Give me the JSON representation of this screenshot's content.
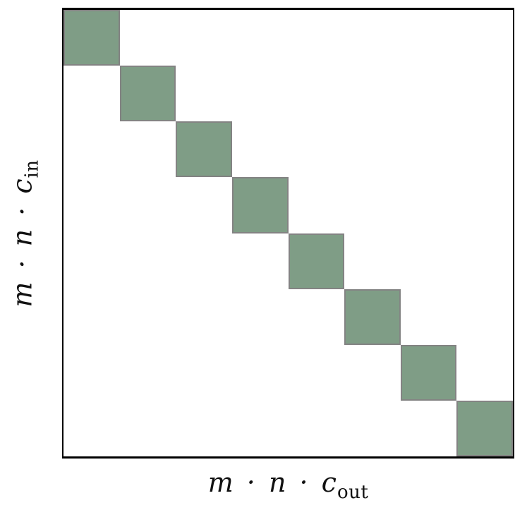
{
  "figure": {
    "type": "block-diagonal-matrix-diagram",
    "diagonal_blocks": 8,
    "xlabel": {
      "main": "m · n · c",
      "sub": "out"
    },
    "ylabel": {
      "main": "m · n · c",
      "sub": "in"
    },
    "colors": {
      "block_fill": "#7f9d86",
      "block_border": "#838383",
      "frame": "#000000",
      "background": "#ffffff"
    }
  }
}
